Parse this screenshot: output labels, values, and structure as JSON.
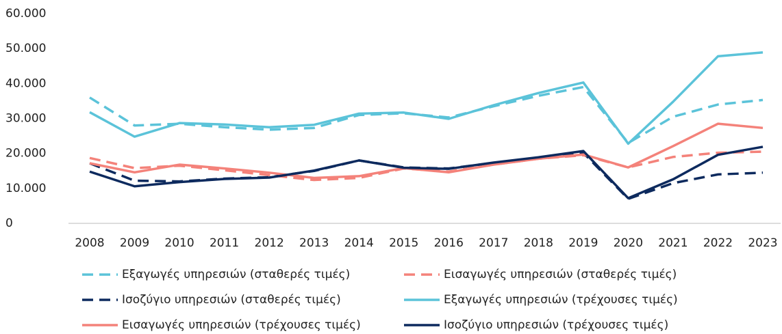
{
  "chart_data": {
    "type": "line",
    "x": [
      "2008",
      "2009",
      "2010",
      "2011",
      "2012",
      "2013",
      "2014",
      "2015",
      "2016",
      "2017",
      "2018",
      "2019",
      "2020",
      "2021",
      "2022",
      "2023"
    ],
    "ylim": [
      0,
      60000
    ],
    "yticks": [
      0,
      {
        "value": 10000,
        "label": "10.000"
      },
      {
        "value": 20000,
        "label": "20.000"
      },
      {
        "value": 30000,
        "label": "30.000"
      },
      {
        "value": 40000,
        "label": "40.000"
      },
      {
        "value": 50000,
        "label": "50.000"
      },
      {
        "value": 60000,
        "label": "60.000"
      }
    ],
    "grid": false,
    "legend": "bottom",
    "series": [
      {
        "name": "Εξαγωγές υπηρεσιών (σταθερές τιμές)",
        "color": "#5bc3d9",
        "dashed": true,
        "values": [
          36000,
          28000,
          28500,
          27500,
          26800,
          27300,
          31000,
          31500,
          30300,
          33500,
          36500,
          39000,
          23000,
          30500,
          34000,
          35300
        ]
      },
      {
        "name": "Εισαγωγές υπηρεσιών (σταθερές τιμές)",
        "color": "#f4827a",
        "dashed": true,
        "values": [
          18700,
          15800,
          16500,
          15200,
          13800,
          12400,
          13000,
          15700,
          14800,
          16800,
          18500,
          19500,
          16000,
          19000,
          20200,
          20500
        ]
      },
      {
        "name": "Ισοζύγιο υπηρεσιών (σταθερές τιμές)",
        "color": "#0d2a5e",
        "dashed": true,
        "values": [
          17200,
          12200,
          12000,
          12800,
          13200,
          15000,
          18000,
          16000,
          15700,
          17300,
          18800,
          20200,
          7000,
          11500,
          14000,
          14500
        ]
      },
      {
        "name": "Εξαγωγές υπηρεσιών (τρέχουσες τιμές)",
        "color": "#5bc3d9",
        "dashed": false,
        "values": [
          31800,
          24800,
          28700,
          28300,
          27500,
          28200,
          31400,
          31700,
          29900,
          33800,
          37300,
          40300,
          22800,
          34800,
          47800,
          48900
        ]
      },
      {
        "name": "Εισαγωγές υπηρεσιών (τρέχουσες τιμές)",
        "color": "#f4827a",
        "dashed": false,
        "values": [
          17200,
          14600,
          16800,
          15700,
          14500,
          13000,
          13500,
          15800,
          14600,
          16800,
          18500,
          19700,
          16000,
          22100,
          28500,
          27300
        ]
      },
      {
        "name": "Ισοζύγιο υπηρεσιών (τρέχουσες τιμές)",
        "color": "#0d2a5e",
        "dashed": false,
        "values": [
          14800,
          10600,
          11800,
          12700,
          13100,
          15100,
          18000,
          15900,
          15600,
          17400,
          18900,
          20700,
          7200,
          12600,
          19600,
          21900
        ]
      }
    ]
  }
}
